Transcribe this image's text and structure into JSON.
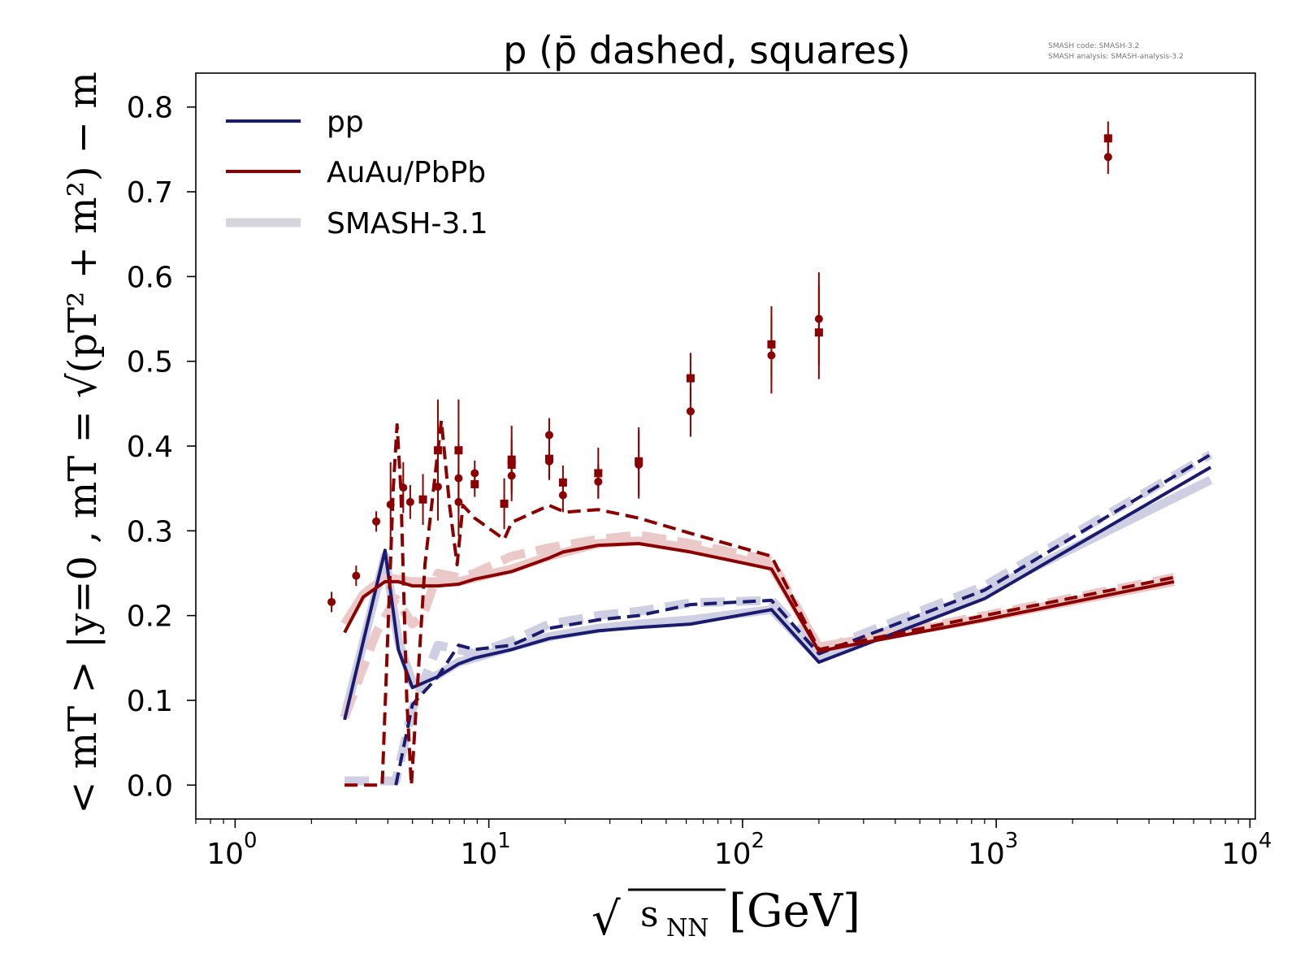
{
  "chart_data": {
    "type": "line",
    "title": "p (p̄ dashed, squares)",
    "meta_lines": [
      "SMASH code:      SMASH-3.2",
      "SMASH analysis:  SMASH-analysis-3.2"
    ],
    "xlabel": "√sNN [GeV]",
    "xlabel_parts": {
      "root": "√",
      "var": "s",
      "sub": "NN",
      "unit": "[GeV]"
    },
    "ylabel": "< mT > |y=0 , mT = √(pT² + m²) − m",
    "xscale": "log",
    "xlim": [
      0.7,
      10500
    ],
    "ylim": [
      -0.04,
      0.84
    ],
    "x_ticks": [
      {
        "value": 1,
        "base": "10",
        "exp": "0"
      },
      {
        "value": 10,
        "base": "10",
        "exp": "1"
      },
      {
        "value": 100,
        "base": "10",
        "exp": "2"
      },
      {
        "value": 1000,
        "base": "10",
        "exp": "3"
      },
      {
        "value": 10000,
        "base": "10",
        "exp": "4"
      }
    ],
    "y_ticks": [
      {
        "value": 0.0,
        "label": "0.0"
      },
      {
        "value": 0.1,
        "label": "0.1"
      },
      {
        "value": 0.2,
        "label": "0.2"
      },
      {
        "value": 0.3,
        "label": "0.3"
      },
      {
        "value": 0.4,
        "label": "0.4"
      },
      {
        "value": 0.5,
        "label": "0.5"
      },
      {
        "value": 0.6,
        "label": "0.6"
      },
      {
        "value": 0.7,
        "label": "0.7"
      },
      {
        "value": 0.8,
        "label": "0.8"
      }
    ],
    "legend": {
      "position": "top-left",
      "entries": [
        {
          "label": "pp",
          "color": "#1a1a6e",
          "style": "solid"
        },
        {
          "label": "AuAu/PbPb",
          "color": "#8b0000",
          "style": "solid"
        },
        {
          "label": "SMASH-3.1",
          "color": "#d6d6dc",
          "style": "thick"
        }
      ]
    },
    "colors": {
      "pp": "#1a1a6e",
      "auau": "#8b0000",
      "old_pp": "#cfcfe3",
      "old_auau": "#ecc9c9",
      "axis": "#000000"
    },
    "series": [
      {
        "id": "old_pp_p",
        "kind": "reference",
        "color": "#cfcfe3",
        "dash": "solid",
        "points": [
          [
            2.7,
            0.08
          ],
          [
            3.9,
            0.27
          ],
          [
            4.4,
            0.17
          ],
          [
            5.0,
            0.12
          ],
          [
            6.3,
            0.13
          ],
          [
            7.6,
            0.145
          ],
          [
            8.8,
            0.15
          ],
          [
            12.3,
            0.163
          ],
          [
            17.3,
            0.175
          ],
          [
            27,
            0.185
          ],
          [
            39,
            0.19
          ],
          [
            62.4,
            0.195
          ],
          [
            130,
            0.207
          ],
          [
            200,
            0.15
          ],
          [
            900,
            0.228
          ],
          [
            7000,
            0.36
          ]
        ]
      },
      {
        "id": "old_pp_pbar",
        "kind": "reference",
        "color": "#cfcfe3",
        "dash": "dashed",
        "points": [
          [
            2.7,
            0.005
          ],
          [
            4.3,
            0.005
          ],
          [
            5.0,
            0.09
          ],
          [
            6.3,
            0.165
          ],
          [
            7.6,
            0.16
          ],
          [
            8.8,
            0.155
          ],
          [
            12.3,
            0.17
          ],
          [
            17.3,
            0.19
          ],
          [
            27,
            0.2
          ],
          [
            39,
            0.205
          ],
          [
            62.4,
            0.215
          ],
          [
            130,
            0.218
          ],
          [
            200,
            0.158
          ],
          [
            900,
            0.235
          ],
          [
            7000,
            0.39
          ]
        ]
      },
      {
        "id": "old_auau_p",
        "kind": "reference",
        "color": "#ecc9c9",
        "dash": "solid",
        "points": [
          [
            2.7,
            0.19
          ],
          [
            3.2,
            0.225
          ],
          [
            3.9,
            0.245
          ],
          [
            5.0,
            0.24
          ],
          [
            6.3,
            0.24
          ],
          [
            7.6,
            0.24
          ],
          [
            12.3,
            0.255
          ],
          [
            17.3,
            0.27
          ],
          [
            27,
            0.285
          ],
          [
            39,
            0.288
          ],
          [
            62.4,
            0.28
          ],
          [
            130,
            0.258
          ],
          [
            200,
            0.163
          ],
          [
            900,
            0.197
          ],
          [
            5020,
            0.24
          ]
        ]
      },
      {
        "id": "old_auau_pbar",
        "kind": "reference",
        "color": "#ecc9c9",
        "dash": "dashed",
        "points": [
          [
            2.7,
            0.08
          ],
          [
            3.6,
            0.18
          ],
          [
            4.3,
            0.22
          ],
          [
            5.0,
            0.19
          ],
          [
            5.5,
            0.2
          ],
          [
            6.3,
            0.25
          ],
          [
            7.6,
            0.245
          ],
          [
            8.8,
            0.25
          ],
          [
            12.3,
            0.27
          ],
          [
            17.3,
            0.28
          ],
          [
            27,
            0.29
          ],
          [
            39,
            0.295
          ],
          [
            62.4,
            0.285
          ],
          [
            130,
            0.265
          ],
          [
            200,
            0.162
          ],
          [
            900,
            0.2
          ],
          [
            5020,
            0.245
          ]
        ]
      },
      {
        "id": "pp_p",
        "name": "pp",
        "color": "#1a1a6e",
        "dash": "solid",
        "points": [
          [
            2.7,
            0.077
          ],
          [
            3.9,
            0.277
          ],
          [
            4.4,
            0.16
          ],
          [
            5.0,
            0.115
          ],
          [
            6.3,
            0.128
          ],
          [
            7.6,
            0.143
          ],
          [
            8.8,
            0.15
          ],
          [
            12.3,
            0.16
          ],
          [
            17.3,
            0.173
          ],
          [
            27,
            0.182
          ],
          [
            39,
            0.186
          ],
          [
            62.4,
            0.19
          ],
          [
            130,
            0.207
          ],
          [
            200,
            0.145
          ],
          [
            900,
            0.22
          ],
          [
            7000,
            0.375
          ]
        ]
      },
      {
        "id": "pp_pbar",
        "name": "pp",
        "color": "#1a1a6e",
        "dash": "dashed",
        "points": [
          [
            4.3,
            0.0
          ],
          [
            5.0,
            0.095
          ],
          [
            6.3,
            0.128
          ],
          [
            7.6,
            0.165
          ],
          [
            8.8,
            0.16
          ],
          [
            12.3,
            0.165
          ],
          [
            17.3,
            0.185
          ],
          [
            27,
            0.195
          ],
          [
            39,
            0.2
          ],
          [
            62.4,
            0.213
          ],
          [
            130,
            0.218
          ],
          [
            200,
            0.155
          ],
          [
            900,
            0.23
          ],
          [
            7000,
            0.39
          ]
        ]
      },
      {
        "id": "auau_p",
        "name": "AuAu/PbPb",
        "color": "#8b0000",
        "dash": "solid",
        "points": [
          [
            2.7,
            0.18
          ],
          [
            3.2,
            0.222
          ],
          [
            3.9,
            0.24
          ],
          [
            4.4,
            0.24
          ],
          [
            5.0,
            0.235
          ],
          [
            6.3,
            0.235
          ],
          [
            7.6,
            0.237
          ],
          [
            8.8,
            0.243
          ],
          [
            12.3,
            0.252
          ],
          [
            17.3,
            0.268
          ],
          [
            19.6,
            0.275
          ],
          [
            27,
            0.283
          ],
          [
            39,
            0.285
          ],
          [
            62.4,
            0.275
          ],
          [
            130,
            0.255
          ],
          [
            200,
            0.158
          ],
          [
            900,
            0.195
          ],
          [
            5020,
            0.24
          ]
        ]
      },
      {
        "id": "auau_pbar",
        "name": "AuAu/PbPb",
        "color": "#8b0000",
        "dash": "dashed",
        "points": [
          [
            2.7,
            0.0
          ],
          [
            3.8,
            0.0
          ],
          [
            4.2,
            0.35
          ],
          [
            4.35,
            0.425
          ],
          [
            4.5,
            0.35
          ],
          [
            4.75,
            0.1
          ],
          [
            4.95,
            0.0
          ],
          [
            5.6,
            0.26
          ],
          [
            6.5,
            0.43
          ],
          [
            7.0,
            0.33
          ],
          [
            7.5,
            0.26
          ],
          [
            7.9,
            0.33
          ],
          [
            8.8,
            0.315
          ],
          [
            11.5,
            0.29
          ],
          [
            12.3,
            0.31
          ],
          [
            17.3,
            0.33
          ],
          [
            20,
            0.322
          ],
          [
            27,
            0.325
          ],
          [
            39,
            0.315
          ],
          [
            62.4,
            0.297
          ],
          [
            130,
            0.27
          ],
          [
            200,
            0.16
          ],
          [
            900,
            0.2
          ],
          [
            5020,
            0.245
          ]
        ]
      }
    ],
    "markers": [
      {
        "shape": "circle",
        "x": 2.4,
        "y": 0.216,
        "err": 0.012
      },
      {
        "shape": "circle",
        "x": 3.0,
        "y": 0.247,
        "err": 0.012
      },
      {
        "shape": "circle",
        "x": 3.6,
        "y": 0.311,
        "err": 0.012
      },
      {
        "shape": "circle",
        "x": 4.1,
        "y": 0.331,
        "err": 0.05
      },
      {
        "shape": "circle",
        "x": 4.6,
        "y": 0.351,
        "err": 0.03
      },
      {
        "shape": "circle",
        "x": 4.9,
        "y": 0.334,
        "err": 0.02
      },
      {
        "shape": "square",
        "x": 5.5,
        "y": 0.337,
        "err": 0.03
      },
      {
        "shape": "circle",
        "x": 6.3,
        "y": 0.352,
        "err": 0.04
      },
      {
        "shape": "square",
        "x": 6.3,
        "y": 0.395,
        "err": 0.06
      },
      {
        "shape": "circle",
        "x": 7.6,
        "y": 0.362,
        "err": 0.04
      },
      {
        "shape": "circle",
        "x": 7.6,
        "y": 0.334,
        "err": 0.04
      },
      {
        "shape": "square",
        "x": 7.6,
        "y": 0.395,
        "err": 0.06
      },
      {
        "shape": "circle",
        "x": 8.8,
        "y": 0.368,
        "err": 0.015
      },
      {
        "shape": "square",
        "x": 8.8,
        "y": 0.355,
        "err": 0.015
      },
      {
        "shape": "square",
        "x": 11.5,
        "y": 0.332,
        "err": 0.03
      },
      {
        "shape": "circle",
        "x": 12.3,
        "y": 0.365,
        "err": 0.03
      },
      {
        "shape": "square",
        "x": 12.3,
        "y": 0.384,
        "err": 0.04
      },
      {
        "shape": "square",
        "x": 12.3,
        "y": 0.378,
        "err": 0.03
      },
      {
        "shape": "circle",
        "x": 17.3,
        "y": 0.413,
        "err": 0.02
      },
      {
        "shape": "square",
        "x": 17.3,
        "y": 0.385,
        "err": 0.025
      },
      {
        "shape": "circle",
        "x": 17.3,
        "y": 0.382,
        "err": 0.02
      },
      {
        "shape": "square",
        "x": 19.6,
        "y": 0.357,
        "err": 0.02
      },
      {
        "shape": "circle",
        "x": 19.6,
        "y": 0.342,
        "err": 0.02
      },
      {
        "shape": "square",
        "x": 27,
        "y": 0.368,
        "err": 0.03
      },
      {
        "shape": "circle",
        "x": 27,
        "y": 0.358,
        "err": 0.02
      },
      {
        "shape": "square",
        "x": 39,
        "y": 0.382,
        "err": 0.04
      },
      {
        "shape": "circle",
        "x": 39,
        "y": 0.378,
        "err": 0.04
      },
      {
        "shape": "square",
        "x": 62.4,
        "y": 0.48,
        "err": 0.03
      },
      {
        "shape": "circle",
        "x": 62.4,
        "y": 0.441,
        "err": 0.03
      },
      {
        "shape": "square",
        "x": 130,
        "y": 0.52,
        "err": 0.045
      },
      {
        "shape": "circle",
        "x": 130,
        "y": 0.507,
        "err": 0.045
      },
      {
        "shape": "square",
        "x": 200,
        "y": 0.534,
        "err": 0.055
      },
      {
        "shape": "circle",
        "x": 200,
        "y": 0.55,
        "err": 0.055
      },
      {
        "shape": "square",
        "x": 2760,
        "y": 0.763,
        "err": 0.02
      },
      {
        "shape": "circle",
        "x": 2760,
        "y": 0.741,
        "err": 0.02
      }
    ]
  }
}
